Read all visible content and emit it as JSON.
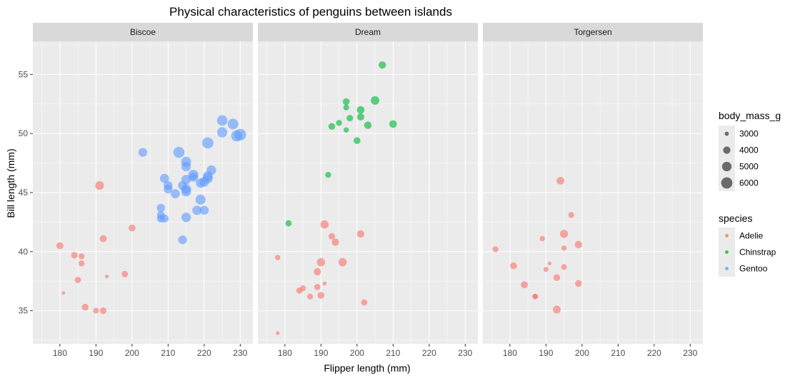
{
  "chart_data": {
    "type": "scatter",
    "title": "Physical characteristics of penguins between islands",
    "xlabel": "Flipper length (mm)",
    "ylabel": "Bill length (mm)",
    "xlim": [
      172.5,
      233.5
    ],
    "ylim": [
      32.2,
      57.8
    ],
    "xticks": [
      180,
      190,
      200,
      210,
      220,
      230
    ],
    "yticks": [
      35,
      40,
      45,
      50,
      55
    ],
    "grid": true,
    "facets": [
      "Biscoe",
      "Dream",
      "Torgersen"
    ],
    "size_legend": {
      "title": "body_mass_g",
      "breaks": [
        3000,
        4000,
        5000,
        6000
      ],
      "range": [
        2700,
        6300
      ]
    },
    "color_legend": {
      "title": "species",
      "entries": [
        {
          "name": "Adelie",
          "color": "#F8766D"
        },
        {
          "name": "Chinstrap",
          "color": "#00BA38"
        },
        {
          "name": "Gentoo",
          "color": "#619CFF"
        }
      ]
    },
    "points": [
      {
        "island": "Biscoe",
        "species": "Adelie",
        "x": 180,
        "y": 40.5,
        "mass": 3900
      },
      {
        "island": "Biscoe",
        "species": "Adelie",
        "x": 184,
        "y": 39.7,
        "mass": 3700
      },
      {
        "island": "Biscoe",
        "species": "Adelie",
        "x": 186,
        "y": 39.6,
        "mass": 3500
      },
      {
        "island": "Biscoe",
        "species": "Adelie",
        "x": 186,
        "y": 39.0,
        "mass": 3500
      },
      {
        "island": "Biscoe",
        "species": "Adelie",
        "x": 185,
        "y": 37.6,
        "mass": 3600
      },
      {
        "island": "Biscoe",
        "species": "Adelie",
        "x": 181,
        "y": 36.5,
        "mass": 2850
      },
      {
        "island": "Biscoe",
        "species": "Adelie",
        "x": 187,
        "y": 35.3,
        "mass": 3800
      },
      {
        "island": "Biscoe",
        "species": "Adelie",
        "x": 190,
        "y": 35.0,
        "mass": 3450
      },
      {
        "island": "Biscoe",
        "species": "Adelie",
        "x": 192,
        "y": 35.0,
        "mass": 3700
      },
      {
        "island": "Biscoe",
        "species": "Adelie",
        "x": 191,
        "y": 45.6,
        "mass": 4600
      },
      {
        "island": "Biscoe",
        "species": "Adelie",
        "x": 192,
        "y": 41.1,
        "mass": 3900
      },
      {
        "island": "Biscoe",
        "species": "Adelie",
        "x": 193,
        "y": 37.9,
        "mass": 2900
      },
      {
        "island": "Biscoe",
        "species": "Adelie",
        "x": 198,
        "y": 38.1,
        "mass": 3700
      },
      {
        "island": "Biscoe",
        "species": "Adelie",
        "x": 200,
        "y": 42.0,
        "mass": 3800
      },
      {
        "island": "Biscoe",
        "species": "Gentoo",
        "x": 203,
        "y": 48.4,
        "mass": 4600
      },
      {
        "island": "Biscoe",
        "species": "Gentoo",
        "x": 208,
        "y": 43.7,
        "mass": 4400
      },
      {
        "island": "Biscoe",
        "species": "Gentoo",
        "x": 208,
        "y": 43.1,
        "mass": 4200
      },
      {
        "island": "Biscoe",
        "species": "Gentoo",
        "x": 209,
        "y": 42.8,
        "mass": 4300
      },
      {
        "island": "Biscoe",
        "species": "Gentoo",
        "x": 208,
        "y": 42.8,
        "mass": 4250
      },
      {
        "island": "Biscoe",
        "species": "Gentoo",
        "x": 209,
        "y": 46.2,
        "mass": 4800
      },
      {
        "island": "Biscoe",
        "species": "Gentoo",
        "x": 210,
        "y": 45.6,
        "mass": 4600
      },
      {
        "island": "Biscoe",
        "species": "Gentoo",
        "x": 210,
        "y": 45.3,
        "mass": 4700
      },
      {
        "island": "Biscoe",
        "species": "Gentoo",
        "x": 212,
        "y": 44.9,
        "mass": 4800
      },
      {
        "island": "Biscoe",
        "species": "Gentoo",
        "x": 213,
        "y": 48.4,
        "mass": 5900
      },
      {
        "island": "Biscoe",
        "species": "Gentoo",
        "x": 214,
        "y": 45.6,
        "mass": 4700
      },
      {
        "island": "Biscoe",
        "species": "Gentoo",
        "x": 214,
        "y": 41.0,
        "mass": 4600
      },
      {
        "island": "Biscoe",
        "species": "Gentoo",
        "x": 215,
        "y": 47.6,
        "mass": 5300
      },
      {
        "island": "Biscoe",
        "species": "Gentoo",
        "x": 215,
        "y": 47.2,
        "mass": 5000
      },
      {
        "island": "Biscoe",
        "species": "Gentoo",
        "x": 215,
        "y": 46.1,
        "mass": 5000
      },
      {
        "island": "Biscoe",
        "species": "Gentoo",
        "x": 215,
        "y": 45.3,
        "mass": 5200
      },
      {
        "island": "Biscoe",
        "species": "Gentoo",
        "x": 215,
        "y": 45.1,
        "mass": 5300
      },
      {
        "island": "Biscoe",
        "species": "Gentoo",
        "x": 215,
        "y": 42.9,
        "mass": 5000
      },
      {
        "island": "Biscoe",
        "species": "Gentoo",
        "x": 217,
        "y": 46.5,
        "mass": 5300
      },
      {
        "island": "Biscoe",
        "species": "Gentoo",
        "x": 217,
        "y": 46.3,
        "mass": 4800
      },
      {
        "island": "Biscoe",
        "species": "Gentoo",
        "x": 219,
        "y": 45.8,
        "mass": 4950
      },
      {
        "island": "Biscoe",
        "species": "Gentoo",
        "x": 219,
        "y": 44.4,
        "mass": 5300
      },
      {
        "island": "Biscoe",
        "species": "Gentoo",
        "x": 218,
        "y": 43.5,
        "mass": 4900
      },
      {
        "island": "Biscoe",
        "species": "Gentoo",
        "x": 220,
        "y": 43.5,
        "mass": 4750
      },
      {
        "island": "Biscoe",
        "species": "Gentoo",
        "x": 220,
        "y": 45.9,
        "mass": 5050
      },
      {
        "island": "Biscoe",
        "species": "Gentoo",
        "x": 221,
        "y": 46.2,
        "mass": 5200
      },
      {
        "island": "Biscoe",
        "species": "Gentoo",
        "x": 221,
        "y": 46.4,
        "mass": 5150
      },
      {
        "island": "Biscoe",
        "species": "Gentoo",
        "x": 222,
        "y": 46.9,
        "mass": 5000
      },
      {
        "island": "Biscoe",
        "species": "Gentoo",
        "x": 221,
        "y": 49.2,
        "mass": 6000
      },
      {
        "island": "Biscoe",
        "species": "Gentoo",
        "x": 225,
        "y": 51.1,
        "mass": 5500
      },
      {
        "island": "Biscoe",
        "species": "Gentoo",
        "x": 225,
        "y": 50.1,
        "mass": 5400
      },
      {
        "island": "Biscoe",
        "species": "Gentoo",
        "x": 228,
        "y": 50.8,
        "mass": 5600
      },
      {
        "island": "Biscoe",
        "species": "Gentoo",
        "x": 229,
        "y": 49.8,
        "mass": 5950
      },
      {
        "island": "Biscoe",
        "species": "Gentoo",
        "x": 230,
        "y": 49.9,
        "mass": 6300
      },
      {
        "island": "Dream",
        "species": "Adelie",
        "x": 178,
        "y": 39.5,
        "mass": 3300
      },
      {
        "island": "Dream",
        "species": "Adelie",
        "x": 178,
        "y": 33.1,
        "mass": 2900
      },
      {
        "island": "Dream",
        "species": "Adelie",
        "x": 184,
        "y": 36.7,
        "mass": 3550
      },
      {
        "island": "Dream",
        "species": "Adelie",
        "x": 185,
        "y": 36.9,
        "mass": 3500
      },
      {
        "island": "Dream",
        "species": "Adelie",
        "x": 187,
        "y": 36.2,
        "mass": 3450
      },
      {
        "island": "Dream",
        "species": "Adelie",
        "x": 189,
        "y": 38.3,
        "mass": 4000
      },
      {
        "island": "Dream",
        "species": "Adelie",
        "x": 189,
        "y": 37.0,
        "mass": 3600
      },
      {
        "island": "Dream",
        "species": "Adelie",
        "x": 190,
        "y": 36.3,
        "mass": 3800
      },
      {
        "island": "Dream",
        "species": "Adelie",
        "x": 190,
        "y": 39.1,
        "mass": 4400
      },
      {
        "island": "Dream",
        "species": "Adelie",
        "x": 191,
        "y": 42.3,
        "mass": 4400
      },
      {
        "island": "Dream",
        "species": "Adelie",
        "x": 191,
        "y": 37.3,
        "mass": 2950
      },
      {
        "island": "Dream",
        "species": "Adelie",
        "x": 193,
        "y": 41.3,
        "mass": 3700
      },
      {
        "island": "Dream",
        "species": "Adelie",
        "x": 194,
        "y": 40.8,
        "mass": 4000
      },
      {
        "island": "Dream",
        "species": "Adelie",
        "x": 196,
        "y": 39.1,
        "mass": 4400
      },
      {
        "island": "Dream",
        "species": "Adelie",
        "x": 201,
        "y": 41.5,
        "mass": 4000
      },
      {
        "island": "Dream",
        "species": "Adelie",
        "x": 202,
        "y": 35.7,
        "mass": 3600
      },
      {
        "island": "Dream",
        "species": "Chinstrap",
        "x": 181,
        "y": 42.4,
        "mass": 3600
      },
      {
        "island": "Dream",
        "species": "Chinstrap",
        "x": 192,
        "y": 46.5,
        "mass": 3500
      },
      {
        "island": "Dream",
        "species": "Chinstrap",
        "x": 193,
        "y": 50.6,
        "mass": 3800
      },
      {
        "island": "Dream",
        "species": "Chinstrap",
        "x": 195,
        "y": 50.9,
        "mass": 3500
      },
      {
        "island": "Dream",
        "species": "Chinstrap",
        "x": 197,
        "y": 52.7,
        "mass": 3800
      },
      {
        "island": "Dream",
        "species": "Chinstrap",
        "x": 197,
        "y": 52.2,
        "mass": 3450
      },
      {
        "island": "Dream",
        "species": "Chinstrap",
        "x": 197,
        "y": 50.3,
        "mass": 3300
      },
      {
        "island": "Dream",
        "species": "Chinstrap",
        "x": 198,
        "y": 51.3,
        "mass": 3700
      },
      {
        "island": "Dream",
        "species": "Chinstrap",
        "x": 200,
        "y": 49.4,
        "mass": 3800
      },
      {
        "island": "Dream",
        "species": "Chinstrap",
        "x": 201,
        "y": 52.0,
        "mass": 4100
      },
      {
        "island": "Dream",
        "species": "Chinstrap",
        "x": 201,
        "y": 51.4,
        "mass": 3950
      },
      {
        "island": "Dream",
        "species": "Chinstrap",
        "x": 203,
        "y": 50.7,
        "mass": 4050
      },
      {
        "island": "Dream",
        "species": "Chinstrap",
        "x": 205,
        "y": 52.8,
        "mass": 4550
      },
      {
        "island": "Dream",
        "species": "Chinstrap",
        "x": 207,
        "y": 55.8,
        "mass": 4000
      },
      {
        "island": "Dream",
        "species": "Chinstrap",
        "x": 210,
        "y": 50.8,
        "mass": 4100
      },
      {
        "island": "Torgersen",
        "species": "Adelie",
        "x": 176,
        "y": 40.2,
        "mass": 3450
      },
      {
        "island": "Torgersen",
        "species": "Adelie",
        "x": 181,
        "y": 38.8,
        "mass": 3800
      },
      {
        "island": "Torgersen",
        "species": "Adelie",
        "x": 184,
        "y": 37.2,
        "mass": 3900
      },
      {
        "island": "Torgersen",
        "species": "Adelie",
        "x": 187,
        "y": 36.2,
        "mass": 3400
      },
      {
        "island": "Torgersen",
        "species": "Adelie",
        "x": 187,
        "y": 36.2,
        "mass": 3300
      },
      {
        "island": "Torgersen",
        "species": "Adelie",
        "x": 189,
        "y": 41.1,
        "mass": 3300
      },
      {
        "island": "Torgersen",
        "species": "Adelie",
        "x": 190,
        "y": 38.5,
        "mass": 3200
      },
      {
        "island": "Torgersen",
        "species": "Adelie",
        "x": 191,
        "y": 39.0,
        "mass": 2900
      },
      {
        "island": "Torgersen",
        "species": "Adelie",
        "x": 193,
        "y": 35.1,
        "mass": 4200
      },
      {
        "island": "Torgersen",
        "species": "Adelie",
        "x": 193,
        "y": 37.8,
        "mass": 3800
      },
      {
        "island": "Torgersen",
        "species": "Adelie",
        "x": 194,
        "y": 46.0,
        "mass": 4200
      },
      {
        "island": "Torgersen",
        "species": "Adelie",
        "x": 195,
        "y": 41.5,
        "mass": 4300
      },
      {
        "island": "Torgersen",
        "species": "Adelie",
        "x": 195,
        "y": 40.3,
        "mass": 3250
      },
      {
        "island": "Torgersen",
        "species": "Adelie",
        "x": 195,
        "y": 38.7,
        "mass": 3450
      },
      {
        "island": "Torgersen",
        "species": "Adelie",
        "x": 197,
        "y": 43.1,
        "mass": 3500
      },
      {
        "island": "Torgersen",
        "species": "Adelie",
        "x": 199,
        "y": 40.6,
        "mass": 4000
      },
      {
        "island": "Torgersen",
        "species": "Adelie",
        "x": 199,
        "y": 37.3,
        "mass": 3800
      }
    ]
  }
}
